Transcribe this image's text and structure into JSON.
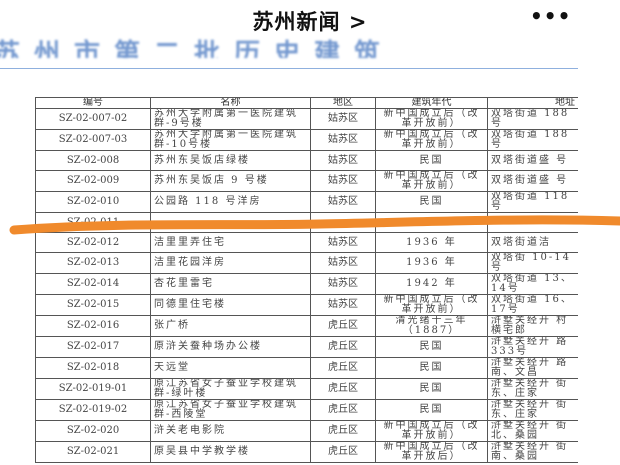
{
  "header": {
    "title": "苏州新闻 >",
    "more_icon": "more-horizontal-icon",
    "more_label": "•••"
  },
  "article": {
    "heading": "苏州市第二批历史建筑"
  },
  "table": {
    "columns": [
      "编号",
      "名称",
      "地区",
      "建筑年代",
      "地址"
    ],
    "rows": [
      [
        "SZ-02-007-02",
        "苏州大学附属第一医院建筑群-9号楼",
        "姑苏区",
        "新中国成立后（改革开放前）",
        "双塔街道 188号"
      ],
      [
        "SZ-02-007-03",
        "苏州大学附属第一医院建筑群-10号楼",
        "姑苏区",
        "新中国成立后（改革开放前）",
        "双塔街道 188号"
      ],
      [
        "SZ-02-008",
        "苏州东吴饭店绿楼",
        "姑苏区",
        "民国",
        "双塔街道盛 号"
      ],
      [
        "SZ-02-009",
        "苏州东吴饭店 9 号楼",
        "姑苏区",
        "新中国成立后（改革开放前）",
        "双塔街道盛 号"
      ],
      [
        "SZ-02-010",
        "公园路 118 号洋房",
        "姑苏区",
        "民国",
        "双塔街道 118号"
      ],
      [
        "SZ-02-011",
        "",
        "",
        "",
        ""
      ],
      [
        "SZ-02-012",
        "洁里里弄住宅",
        "姑苏区",
        "1936 年",
        "双塔街道洁"
      ],
      [
        "SZ-02-013",
        "洁里花园洋房",
        "姑苏区",
        "1936 年",
        "双塔街 10-14号"
      ],
      [
        "SZ-02-014",
        "杏花里雷宅",
        "姑苏区",
        "1942 年",
        "双塔街道 13、14号"
      ],
      [
        "SZ-02-015",
        "同德里住宅楼",
        "姑苏区",
        "新中国成立后（改革开放前）",
        "双塔街道 16、17号"
      ],
      [
        "SZ-02-016",
        "张广桥",
        "虎丘区",
        "清光绪十三年（1887）",
        "浒墅关经开 村横宅郎"
      ],
      [
        "SZ-02-017",
        "原浒关蚕种场办公楼",
        "虎丘区",
        "民国",
        "浒墅关经开 路 333号"
      ],
      [
        "SZ-02-018",
        "天远堂",
        "虎丘区",
        "民国",
        "浒墅关经开 路南、文昌"
      ],
      [
        "SZ-02-019-01",
        "原江苏省女子蚕业学校建筑群-绿叶楼",
        "虎丘区",
        "民国",
        "浒墅关经开 街东、庄家"
      ],
      [
        "SZ-02-019-02",
        "原江苏省女子蚕业学校建筑群-西陵堂",
        "虎丘区",
        "民国",
        "浒墅关经开 街东、庄家"
      ],
      [
        "SZ-02-020",
        "浒关老电影院",
        "虎丘区",
        "新中国成立后（改革开放前）",
        "浒墅关经开 街北、桑园"
      ],
      [
        "SZ-02-021",
        "原吴县中学教学楼",
        "虎丘区",
        "新中国成立后（改革开放后）",
        "浒墅关经开 街南、桑园"
      ]
    ]
  },
  "colors": {
    "heading": "#5b86c7",
    "annotation_stroke": "#f08a2c"
  }
}
